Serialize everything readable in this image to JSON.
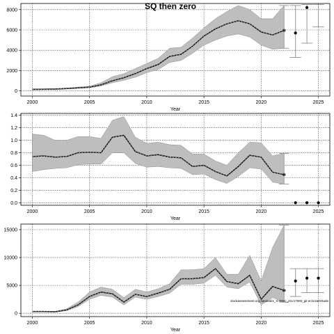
{
  "title": "SQ then zero",
  "colors": {
    "band": "#bebebe",
    "line": "#000000",
    "grid": "#000000"
  },
  "chart_data": [
    {
      "type": "line",
      "xlabel": "Year",
      "ylabel": "",
      "xlim": [
        1999,
        2026
      ],
      "ylim": [
        -500,
        8600
      ],
      "xticks": [
        2000,
        2005,
        2010,
        2015,
        2020,
        2025
      ],
      "yticks": [
        0,
        2000,
        4000,
        6000,
        8000
      ],
      "ytick_labels": [
        "0",
        "2000",
        "4000",
        "6000",
        "8000"
      ],
      "grid": true,
      "series": [
        {
          "x": [
            2000,
            2001,
            2002,
            2003,
            2004,
            2005,
            2006,
            2007,
            2008,
            2009,
            2010,
            2011,
            2012,
            2013,
            2014,
            2015,
            2016,
            2017,
            2018,
            2019,
            2020,
            2021,
            2022
          ],
          "values": [
            150,
            160,
            180,
            230,
            300,
            380,
            600,
            1000,
            1300,
            1700,
            2200,
            2600,
            3400,
            3600,
            4400,
            5400,
            6100,
            6600,
            6900,
            6600,
            5800,
            5500,
            5950
          ],
          "lower": [
            110,
            120,
            140,
            190,
            250,
            310,
            480,
            800,
            1050,
            1350,
            1800,
            2100,
            2800,
            3000,
            3700,
            4500,
            5000,
            5400,
            5600,
            5300,
            4500,
            4100,
            4200
          ],
          "upper": [
            200,
            210,
            240,
            290,
            380,
            460,
            800,
            1400,
            1700,
            2200,
            2700,
            3200,
            4200,
            4300,
            5200,
            6200,
            7100,
            7800,
            8400,
            8000,
            7100,
            7100,
            8400
          ]
        }
      ],
      "projection": {
        "x": [
          2023,
          2024,
          2025
        ],
        "values": [
          5700,
          8200,
          null
        ],
        "lower": [
          3300,
          4700,
          6300
        ],
        "upper": [
          8400,
          8500,
          8500
        ]
      }
    },
    {
      "type": "line",
      "xlabel": "Year",
      "ylabel": "",
      "xlim": [
        1999,
        2026
      ],
      "ylim": [
        -0.04,
        1.43
      ],
      "xticks": [
        2000,
        2005,
        2010,
        2015,
        2020,
        2025
      ],
      "yticks": [
        0,
        0.2,
        0.4,
        0.6,
        0.8,
        1.0,
        1.2,
        1.4
      ],
      "ytick_labels": [
        "0.0",
        "0.2",
        "0.4",
        "0.6",
        "0.8",
        "1.0",
        "1.2",
        "1.4"
      ],
      "grid": true,
      "series": [
        {
          "x": [
            2000,
            2001,
            2002,
            2003,
            2004,
            2005,
            2006,
            2007,
            2008,
            2009,
            2010,
            2011,
            2012,
            2013,
            2014,
            2015,
            2016,
            2017,
            2018,
            2019,
            2020,
            2021,
            2022
          ],
          "values": [
            0.74,
            0.75,
            0.73,
            0.74,
            0.8,
            0.81,
            0.8,
            1.05,
            1.08,
            0.82,
            0.75,
            0.77,
            0.73,
            0.72,
            0.58,
            0.6,
            0.5,
            0.43,
            0.58,
            0.76,
            0.73,
            0.49,
            0.45
          ],
          "lower": [
            0.5,
            0.53,
            0.55,
            0.56,
            0.61,
            0.62,
            0.62,
            0.8,
            0.8,
            0.63,
            0.57,
            0.58,
            0.56,
            0.55,
            0.45,
            0.46,
            0.37,
            0.31,
            0.42,
            0.56,
            0.54,
            0.33,
            0.3
          ],
          "upper": [
            1.1,
            1.08,
            1.0,
            1.0,
            1.06,
            1.06,
            1.03,
            1.32,
            1.38,
            1.05,
            0.95,
            0.97,
            0.93,
            0.92,
            0.78,
            0.78,
            0.67,
            0.6,
            0.8,
            0.97,
            0.96,
            0.75,
            0.79
          ]
        }
      ],
      "projection": {
        "x": [
          2023,
          2024,
          2025
        ],
        "values": [
          0,
          0,
          0
        ]
      }
    },
    {
      "type": "line",
      "xlabel": "Year",
      "ylabel": "",
      "xlim": [
        1999,
        2026
      ],
      "ylim": [
        -600,
        16000
      ],
      "xticks": [
        2000,
        2005,
        2010,
        2015,
        2020,
        2025
      ],
      "yticks": [
        0,
        5000,
        10000,
        15000
      ],
      "ytick_labels": [
        "0",
        "5000",
        "10000",
        "15000"
      ],
      "grid": true,
      "series": [
        {
          "x": [
            2000,
            2001,
            2002,
            2003,
            2004,
            2005,
            2006,
            2007,
            2008,
            2009,
            2010,
            2011,
            2012,
            2013,
            2014,
            2015,
            2016,
            2017,
            2018,
            2019,
            2020,
            2021,
            2022
          ],
          "values": [
            300,
            300,
            250,
            600,
            1500,
            3000,
            3800,
            3500,
            2000,
            3400,
            3000,
            3600,
            4300,
            6200,
            6200,
            6400,
            8000,
            5700,
            5300,
            6800,
            2500,
            4800,
            4100
          ],
          "lower": [
            250,
            250,
            200,
            450,
            1200,
            2500,
            3200,
            2900,
            1500,
            2900,
            2500,
            3000,
            3600,
            5200,
            5200,
            5400,
            6800,
            4700,
            4400,
            5600,
            1500,
            2800,
            2000
          ],
          "upper": [
            400,
            400,
            350,
            800,
            2000,
            3800,
            4700,
            4300,
            2800,
            4300,
            3800,
            4400,
            5300,
            7800,
            7800,
            8000,
            10000,
            7000,
            7000,
            10400,
            5800,
            11800,
            15800
          ]
        }
      ],
      "projection": {
        "x": [
          2023,
          2024,
          2025
        ],
        "values": [
          5800,
          6300,
          6300
        ],
        "lower": [
          3000,
          3700,
          3700
        ],
        "upper": [
          8000,
          8000,
          8000
        ]
      },
      "annotation": "stockassessment.org,sanseal/1_S-WSC_23,r17693_git ec2c2a0c6ade"
    }
  ]
}
